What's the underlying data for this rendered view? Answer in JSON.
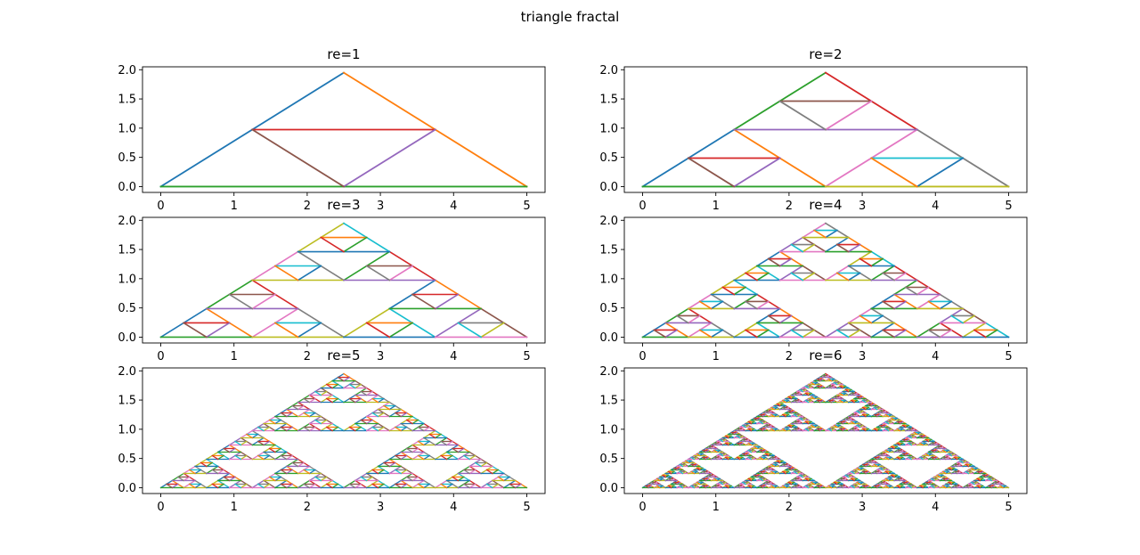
{
  "figure": {
    "suptitle": "triangle fractal"
  },
  "chart_data": [
    {
      "type": "line",
      "title": "re=1",
      "depth": 1,
      "xlim": [
        -0.25,
        5.25
      ],
      "ylim": [
        -0.1,
        2.05
      ],
      "xticks": [
        "0",
        "1",
        "2",
        "3",
        "4",
        "5"
      ],
      "yticks": [
        "0.0",
        "0.5",
        "1.0",
        "1.5",
        "2.0"
      ],
      "triangle": {
        "vertices": [
          [
            0,
            0
          ],
          [
            5,
            0
          ],
          [
            2.5,
            1.95
          ]
        ]
      },
      "grid": false
    },
    {
      "type": "line",
      "title": "re=2",
      "depth": 2,
      "xlim": [
        -0.25,
        5.25
      ],
      "ylim": [
        -0.1,
        2.05
      ],
      "xticks": [
        "0",
        "1",
        "2",
        "3",
        "4",
        "5"
      ],
      "yticks": [
        "0.0",
        "0.5",
        "1.0",
        "1.5",
        "2.0"
      ],
      "triangle": {
        "vertices": [
          [
            0,
            0
          ],
          [
            5,
            0
          ],
          [
            2.5,
            1.95
          ]
        ]
      },
      "grid": false
    },
    {
      "type": "line",
      "title": "re=3",
      "depth": 3,
      "xlim": [
        -0.25,
        5.25
      ],
      "ylim": [
        -0.1,
        2.05
      ],
      "xticks": [
        "0",
        "1",
        "2",
        "3",
        "4",
        "5"
      ],
      "yticks": [
        "0.0",
        "0.5",
        "1.0",
        "1.5",
        "2.0"
      ],
      "triangle": {
        "vertices": [
          [
            0,
            0
          ],
          [
            5,
            0
          ],
          [
            2.5,
            1.95
          ]
        ]
      },
      "grid": false
    },
    {
      "type": "line",
      "title": "re=4",
      "depth": 4,
      "xlim": [
        -0.25,
        5.25
      ],
      "ylim": [
        -0.1,
        2.05
      ],
      "xticks": [
        "0",
        "1",
        "2",
        "3",
        "4",
        "5"
      ],
      "yticks": [
        "0.0",
        "0.5",
        "1.0",
        "1.5",
        "2.0"
      ],
      "triangle": {
        "vertices": [
          [
            0,
            0
          ],
          [
            5,
            0
          ],
          [
            2.5,
            1.95
          ]
        ]
      },
      "grid": false
    },
    {
      "type": "line",
      "title": "re=5",
      "depth": 5,
      "xlim": [
        -0.25,
        5.25
      ],
      "ylim": [
        -0.1,
        2.05
      ],
      "xticks": [
        "0",
        "1",
        "2",
        "3",
        "4",
        "5"
      ],
      "yticks": [
        "0.0",
        "0.5",
        "1.0",
        "1.5",
        "2.0"
      ],
      "triangle": {
        "vertices": [
          [
            0,
            0
          ],
          [
            5,
            0
          ],
          [
            2.5,
            1.95
          ]
        ]
      },
      "grid": false
    },
    {
      "type": "line",
      "title": "re=6",
      "depth": 6,
      "xlim": [
        -0.25,
        5.25
      ],
      "ylim": [
        -0.1,
        2.05
      ],
      "xticks": [
        "0",
        "1",
        "2",
        "3",
        "4",
        "5"
      ],
      "yticks": [
        "0.0",
        "0.5",
        "1.0",
        "1.5",
        "2.0"
      ],
      "triangle": {
        "vertices": [
          [
            0,
            0
          ],
          [
            5,
            0
          ],
          [
            2.5,
            1.95
          ]
        ]
      },
      "grid": false
    }
  ],
  "colors": [
    "#1f77b4",
    "#ff7f0e",
    "#2ca02c",
    "#d62728",
    "#9467bd",
    "#8c564b",
    "#e377c2",
    "#7f7f7f",
    "#bcbd22",
    "#17becf"
  ]
}
